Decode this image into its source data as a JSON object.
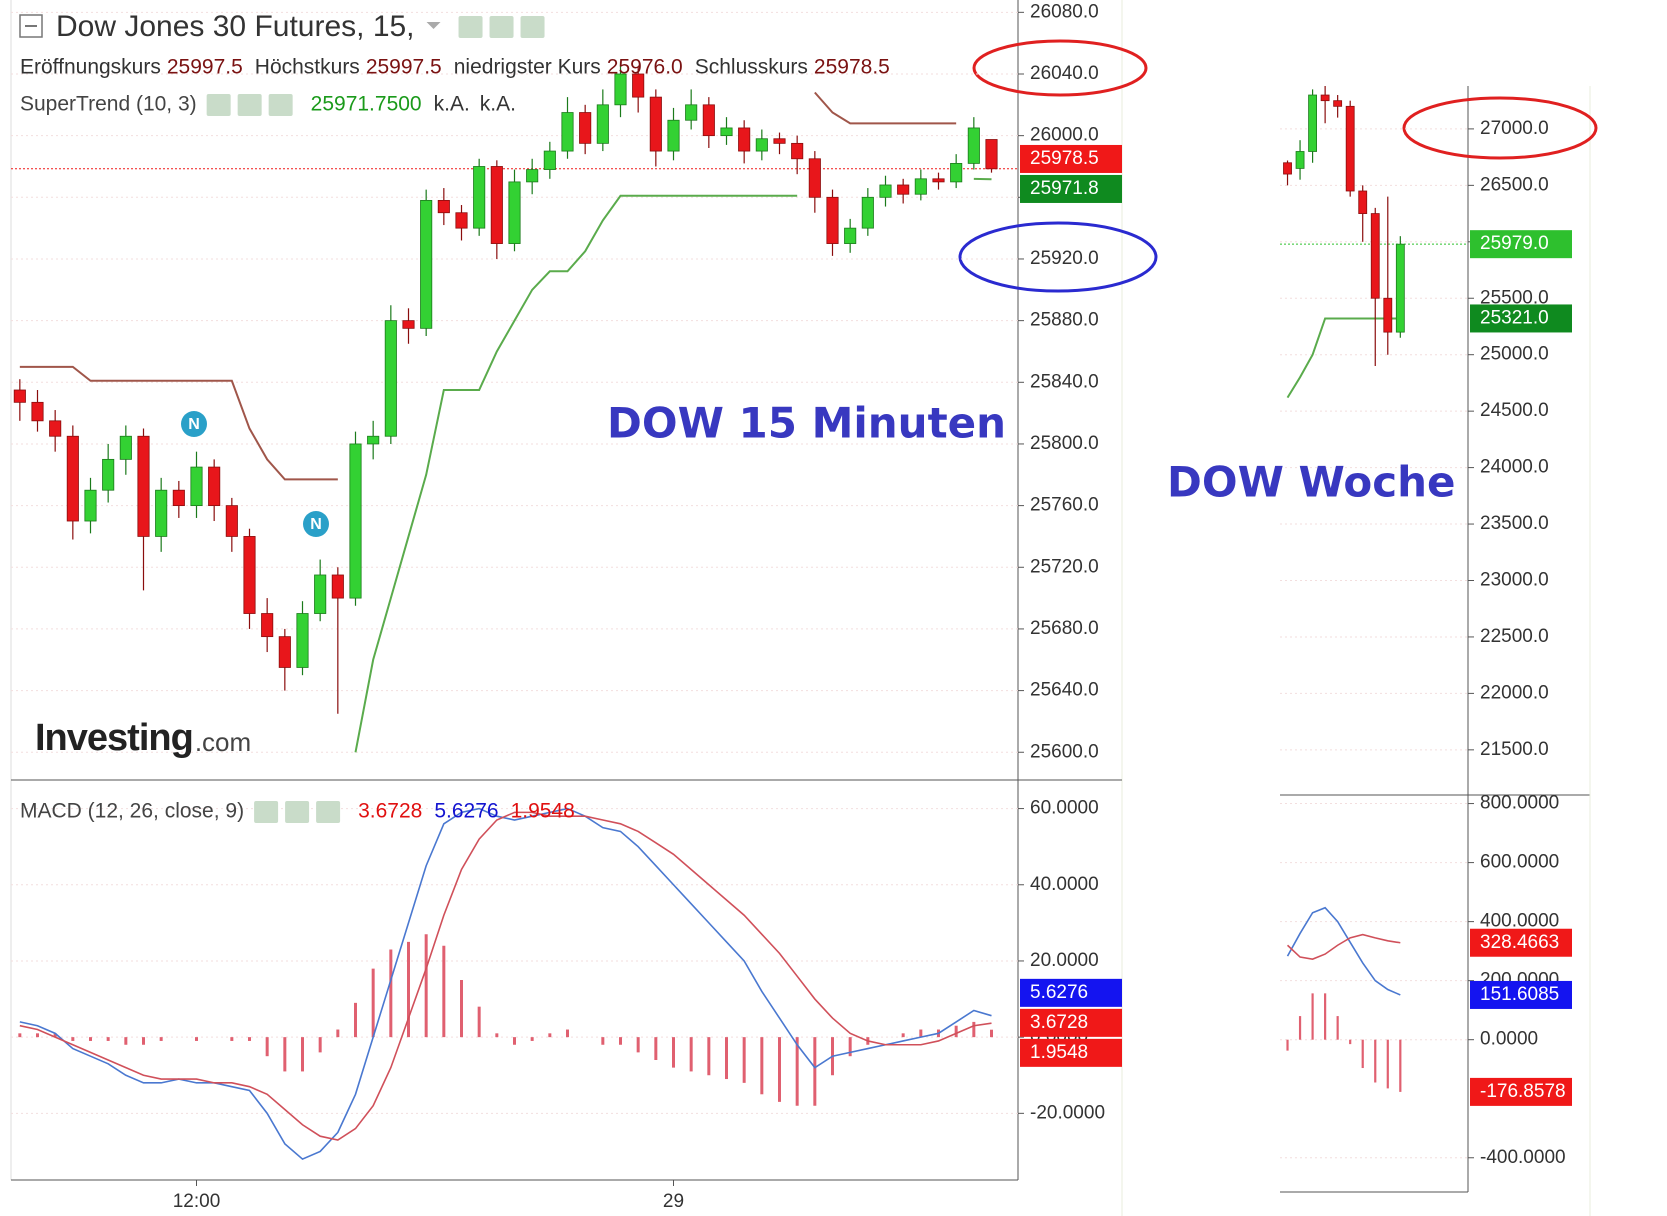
{
  "chart_data": [
    {
      "type": "candlestick",
      "title": "Dow Jones 30 Futures, 15,",
      "legend_items": [
        {
          "name": "Eröffnungskurs",
          "value": 25997.5
        },
        {
          "name": "Höchstkurs",
          "value": 25997.5
        },
        {
          "name": "niedrigster Kurs",
          "value": 25976,
          "label": "25976.0"
        },
        {
          "name": "Schlusskurs",
          "value": 25978.5
        }
      ],
      "indicator": {
        "name": "SuperTrend (10, 3)",
        "value": 25971.75,
        "value_label": "25971.7500",
        "extra": [
          "k.A.",
          "k.A."
        ]
      },
      "annotation": "DOW 15 Minuten",
      "watermark": [
        "Investing",
        ".com"
      ],
      "categories": [
        null,
        null,
        null,
        null,
        null,
        null,
        null,
        null,
        null,
        null,
        "12:00",
        null,
        null,
        null,
        null,
        null,
        null,
        null,
        null,
        null,
        null,
        null,
        null,
        null,
        null,
        null,
        null,
        null,
        null,
        null,
        null,
        null,
        null,
        null,
        null,
        null,
        null,
        "29",
        null,
        null,
        null,
        null,
        null,
        null,
        null,
        null,
        null,
        null,
        null,
        null,
        null,
        null,
        null,
        null,
        null,
        null
      ],
      "open": [
        25835,
        25827,
        25815,
        25805,
        25750,
        25770,
        25790,
        25805,
        25740,
        25770,
        25760,
        25785,
        25760,
        25740,
        25690,
        25675,
        25655,
        25690,
        25715,
        25700,
        25800,
        25805,
        25880,
        25875,
        25958,
        25950,
        25940,
        25980,
        25930,
        25970,
        25978,
        25990,
        26015,
        25995,
        26020,
        26040,
        26025,
        25990,
        26010,
        26020,
        26000,
        26005,
        25990,
        25998,
        25995,
        25985,
        25960,
        25930,
        25940,
        25960,
        25968,
        25962,
        25972,
        25970,
        25982,
        25997.5
      ],
      "high": [
        25842,
        25835,
        25822,
        25812,
        25778,
        25800,
        25812,
        25810,
        25778,
        25776,
        25795,
        25790,
        25765,
        25745,
        25700,
        25680,
        25698,
        25725,
        25720,
        25808,
        25815,
        25890,
        25888,
        25965,
        25966,
        25955,
        25985,
        25984,
        25978,
        25985,
        25996,
        26025,
        26020,
        26030,
        26048,
        26045,
        26030,
        26018,
        26030,
        26025,
        26012,
        26010,
        26004,
        26002,
        26000,
        25990,
        25965,
        25946,
        25966,
        25974,
        25972,
        25978,
        25976,
        25988,
        26012,
        25997.5
      ],
      "low": [
        25815,
        25808,
        25795,
        25738,
        25742,
        25762,
        25780,
        25705,
        25730,
        25752,
        25752,
        25750,
        25730,
        25680,
        25665,
        25640,
        25650,
        25685,
        25625,
        25695,
        25790,
        25800,
        25865,
        25870,
        25942,
        25932,
        25935,
        25920,
        25925,
        25962,
        25972,
        25985,
        25988,
        25990,
        26012,
        26015,
        25980,
        25984,
        26004,
        25992,
        25994,
        25982,
        25984,
        25988,
        25975,
        25950,
        25922,
        25924,
        25935,
        25954,
        25956,
        25958,
        25965,
        25966,
        25978,
        25976
      ],
      "close": [
        25827,
        25815,
        25805,
        25750,
        25770,
        25790,
        25805,
        25740,
        25770,
        25760,
        25785,
        25760,
        25740,
        25690,
        25675,
        25655,
        25690,
        25715,
        25700,
        25800,
        25805,
        25880,
        25875,
        25958,
        25950,
        25940,
        25980,
        25930,
        25970,
        25978,
        25990,
        26015,
        25995,
        26020,
        26040,
        26025,
        25990,
        26010,
        26020,
        26000,
        26005,
        25990,
        25998,
        25995,
        25985,
        25960,
        25930,
        25940,
        25960,
        25968,
        25962,
        25972,
        25970,
        25982,
        26005,
        25978.5
      ],
      "up_color": "#33d133",
      "down_color": "#e8161b",
      "overlays": [
        {
          "color": "#a0564a",
          "values": [
            25850,
            25850,
            25850,
            25850,
            25841,
            25841,
            25841,
            25841,
            25841,
            25841,
            25841,
            25841,
            25841,
            25810,
            25790,
            25777,
            25777,
            25777,
            25777,
            null,
            null,
            null,
            null,
            null,
            null,
            null,
            null,
            null,
            null,
            null,
            null,
            null,
            null,
            null,
            null,
            null,
            null,
            null,
            null,
            null,
            null,
            null,
            null,
            null,
            null,
            26028,
            26015,
            26008,
            26008,
            26008,
            26008,
            26008,
            26008,
            26008,
            null,
            null
          ]
        },
        {
          "color": "#5aab4c",
          "values": [
            null,
            null,
            null,
            null,
            null,
            null,
            null,
            null,
            null,
            null,
            null,
            null,
            null,
            null,
            null,
            null,
            null,
            null,
            null,
            25600,
            25660,
            25700,
            25740,
            25780,
            25835,
            25835,
            25835,
            25860,
            25880,
            25900,
            25912,
            25912,
            25925,
            25945,
            25961,
            25961,
            25961,
            25961,
            25961,
            25961,
            25961,
            25961,
            25961,
            25961,
            25961,
            null,
            null,
            null,
            null,
            null,
            null,
            null,
            null,
            null,
            25972,
            25971.75
          ]
        }
      ],
      "ylim": [
        25582,
        26088
      ],
      "yticks": [
        {
          "value": 25600,
          "label": "25600.0"
        },
        {
          "value": 25640,
          "label": "25640.0"
        },
        {
          "value": 25680,
          "label": "25680.0"
        },
        {
          "value": 25720,
          "label": "25720.0"
        },
        {
          "value": 25760,
          "label": "25760.0"
        },
        {
          "value": 25800,
          "label": "25800.0"
        },
        {
          "value": 25840,
          "label": "25840.0"
        },
        {
          "value": 25880,
          "label": "25880.0"
        },
        {
          "value": 25920,
          "label": "25920.0"
        },
        {
          "value": 25960,
          "label": "25960.0"
        },
        {
          "value": 26000,
          "label": "26000.0"
        },
        {
          "value": 26040,
          "label": "26040.0"
        },
        {
          "value": 26080,
          "label": "26080.0"
        }
      ],
      "price_tags": [
        {
          "value": 25978.5,
          "color": "#f01818"
        },
        {
          "value": 25971.8,
          "color": "#0f8a1f"
        }
      ],
      "grid": true
    },
    {
      "type": "macd",
      "label": "MACD (12, 26, close, 9)",
      "legend_values": [
        {
          "value": 3.6728,
          "color": "#e01010"
        },
        {
          "value": 5.6276,
          "color": "#1414d0"
        },
        {
          "value": 1.9548,
          "color": "#e01010"
        }
      ],
      "series": [
        {
          "color": "#4a78d0",
          "values": [
            4,
            3,
            1,
            -3,
            -5,
            -7,
            -10,
            -12,
            -12,
            -11,
            -12,
            -12,
            -13,
            -14,
            -20,
            -28,
            -32,
            -30,
            -25,
            -15,
            0,
            15,
            30,
            45,
            56,
            59,
            60,
            58,
            57,
            58,
            59,
            60,
            58,
            55,
            54,
            50,
            45,
            40,
            35,
            30,
            25,
            20,
            12,
            5,
            -2,
            -8,
            -5,
            -4,
            -3,
            -2,
            -1,
            0,
            1,
            4,
            7,
            5.6276
          ]
        },
        {
          "color": "#d0505a",
          "values": [
            3,
            2,
            0,
            -2,
            -4,
            -6,
            -8,
            -10,
            -11,
            -11,
            -11,
            -12,
            -12,
            -13,
            -15,
            -19,
            -23,
            -26,
            -27,
            -24,
            -18,
            -8,
            5,
            18,
            32,
            44,
            52,
            57,
            59,
            59,
            58,
            58,
            58,
            57,
            56,
            54,
            51,
            48,
            44,
            40,
            36,
            32,
            27,
            22,
            16,
            10,
            5,
            1,
            -1,
            -2,
            -2,
            -2,
            -1,
            1,
            3,
            3.6728
          ]
        }
      ],
      "histogram": {
        "color": "#e06070",
        "values": [
          1,
          1,
          1,
          -1,
          -1,
          -1,
          -2,
          -2,
          -1,
          0,
          -1,
          0,
          -1,
          -1,
          -5,
          -9,
          -9,
          -4,
          2,
          9,
          18,
          23,
          25,
          27,
          24,
          15,
          8,
          1,
          -2,
          -1,
          1,
          2,
          0,
          -2,
          -2,
          -4,
          -6,
          -8,
          -9,
          -10,
          -11,
          -12,
          -15,
          -17,
          -18,
          -18,
          -10,
          -5,
          -2,
          0,
          1,
          2,
          2,
          3,
          4,
          1.9548
        ]
      },
      "ylim": [
        -37.5,
        67.5
      ],
      "yticks": [
        {
          "value": -20,
          "label": "-20.0000"
        },
        {
          "value": 0,
          "label": "0.0000"
        },
        {
          "value": 20,
          "label": "20.0000"
        },
        {
          "value": 40,
          "label": "40.0000"
        },
        {
          "value": 60,
          "label": "60.0000"
        }
      ],
      "hidden_tick": 0,
      "price_tags": [
        {
          "value": 5.6276,
          "color": "#1414f0"
        },
        {
          "value": 3.6728,
          "color": "#f01818"
        },
        {
          "value": 1.9548,
          "color": "#f01818"
        }
      ],
      "grid": true
    },
    {
      "type": "candlestick",
      "annotation": "DOW Woche",
      "open": [
        26700,
        26650,
        26800,
        27300,
        27250,
        27200,
        26450,
        26250,
        25500,
        25200
      ],
      "high": [
        26720,
        26900,
        27350,
        27380,
        27300,
        27250,
        26500,
        26300,
        26400,
        26050
      ],
      "low": [
        26500,
        26550,
        26700,
        27050,
        27100,
        26400,
        26000,
        24900,
        25000,
        25150
      ],
      "close": [
        26600,
        26800,
        27300,
        27250,
        27200,
        26450,
        26250,
        25500,
        25200,
        25979
      ],
      "up_color": "#33d133",
      "down_color": "#e8161b",
      "overlays": [
        {
          "color": "#5aab4c",
          "values": [
            24620,
            24800,
            25000,
            25321,
            25321,
            25321,
            25321,
            25321,
            25321,
            25321
          ]
        }
      ],
      "ylim": [
        21100,
        27380
      ],
      "yticks": [
        {
          "value": 21500,
          "label": "21500.0"
        },
        {
          "value": 22000,
          "label": "22000.0"
        },
        {
          "value": 22500,
          "label": "22500.0"
        },
        {
          "value": 23000,
          "label": "23000.0"
        },
        {
          "value": 23500,
          "label": "23500.0"
        },
        {
          "value": 24000,
          "label": "24000.0"
        },
        {
          "value": 24500,
          "label": "24500.0"
        },
        {
          "value": 25000,
          "label": "25000.0"
        },
        {
          "value": 25500,
          "label": "25500.0"
        },
        {
          "value": 26000,
          "label": "26000.0"
        },
        {
          "value": 26500,
          "label": "26500.0"
        },
        {
          "value": 27000,
          "label": "27000.0"
        }
      ],
      "price_tags": [
        {
          "value": 25979,
          "label": "25979.0",
          "color": "#2ec02e"
        },
        {
          "value": 25321,
          "label": "25321.0",
          "color": "#0f8a1f"
        }
      ],
      "grid": true
    },
    {
      "type": "macd",
      "series": [
        {
          "color": "#4a78d0",
          "values": [
            283,
            360,
            430,
            447,
            400,
            330,
            260,
            200,
            170,
            151.6085
          ]
        },
        {
          "color": "#d0505a",
          "values": [
            320,
            280,
            273,
            290,
            320,
            345,
            356,
            345,
            335,
            328.4663
          ]
        }
      ],
      "histogram": {
        "color": "#e06070",
        "values": [
          -37,
          80,
          157,
          157,
          80,
          -15,
          -96,
          -145,
          -165,
          -176.8578
        ]
      },
      "ylim": [
        -516,
        829
      ],
      "yticks": [
        {
          "value": -400,
          "label": "-400.0000"
        },
        {
          "value": 0,
          "label": "0.0000"
        },
        {
          "value": 200,
          "label": "200.0000"
        },
        {
          "value": 400,
          "label": "400.0000"
        },
        {
          "value": 600,
          "label": "600.0000"
        },
        {
          "value": 800,
          "label": "800.0000"
        }
      ],
      "price_tags": [
        {
          "value": 328.4663,
          "color": "#f01818"
        },
        {
          "value": 151.6085,
          "color": "#1414f0"
        },
        {
          "value": -176.8578,
          "color": "#f01818"
        }
      ],
      "grid": true
    }
  ]
}
